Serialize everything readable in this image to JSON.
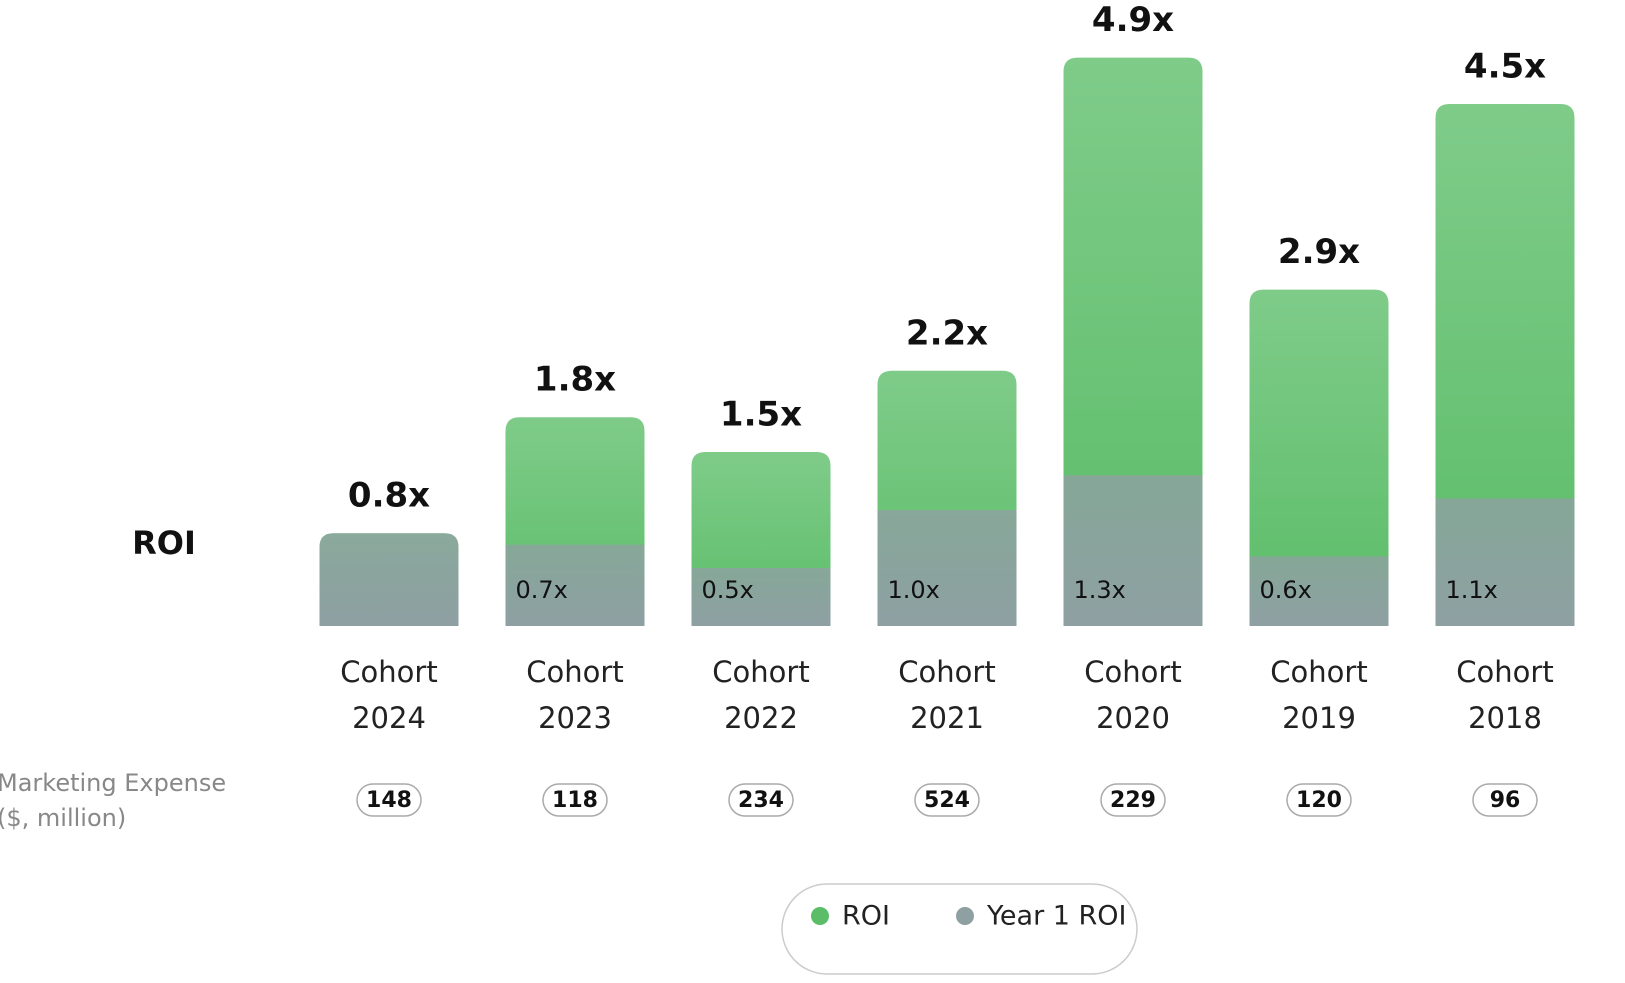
{
  "chart_data": {
    "type": "bar",
    "layout": "overlay",
    "y_label": "ROI",
    "categories": [
      "Cohort 2024",
      "Cohort 2023",
      "Cohort 2022",
      "Cohort 2021",
      "Cohort 2020",
      "Cohort 2019",
      "Cohort 2018"
    ],
    "series": [
      {
        "name": "ROI",
        "color": "#5bbd68",
        "values": [
          0.8,
          1.8,
          1.5,
          2.2,
          4.9,
          2.9,
          4.5
        ],
        "value_labels": [
          "0.8x",
          "1.8x",
          "1.5x",
          "2.2x",
          "4.9x",
          "2.9x",
          "4.5x"
        ]
      },
      {
        "name": "Year 1 ROI",
        "color": "#8fa0a3",
        "values": [
          0.8,
          0.7,
          0.5,
          1.0,
          1.3,
          0.6,
          1.1
        ],
        "value_labels": [
          null,
          "0.7x",
          "0.5x",
          "1.0x",
          "1.3x",
          "0.6x",
          "1.1x"
        ]
      }
    ],
    "ylim": [
      0,
      5
    ],
    "marketing_expense": {
      "label": "Marketing Expense ($, million)",
      "values": [
        148,
        118,
        234,
        524,
        229,
        120,
        96
      ]
    }
  }
}
